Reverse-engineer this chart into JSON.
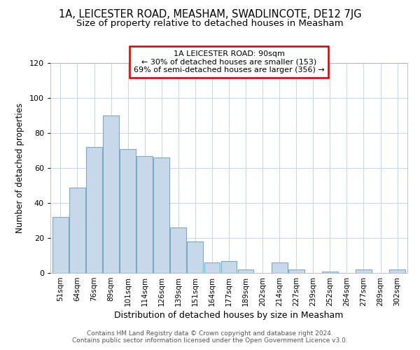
{
  "title": "1A, LEICESTER ROAD, MEASHAM, SWADLINCOTE, DE12 7JG",
  "subtitle": "Size of property relative to detached houses in Measham",
  "xlabel": "Distribution of detached houses by size in Measham",
  "ylabel": "Number of detached properties",
  "bar_labels": [
    "51sqm",
    "64sqm",
    "76sqm",
    "89sqm",
    "101sqm",
    "114sqm",
    "126sqm",
    "139sqm",
    "151sqm",
    "164sqm",
    "177sqm",
    "189sqm",
    "202sqm",
    "214sqm",
    "227sqm",
    "239sqm",
    "252sqm",
    "264sqm",
    "277sqm",
    "289sqm",
    "302sqm"
  ],
  "bar_values": [
    32,
    49,
    72,
    90,
    71,
    67,
    66,
    26,
    18,
    6,
    7,
    2,
    0,
    6,
    2,
    0,
    1,
    0,
    2,
    0,
    2
  ],
  "bar_color": "#c8d8eb",
  "bar_edge_color": "#7aaac8",
  "annotation_title": "1A LEICESTER ROAD: 90sqm",
  "annotation_line1": "← 30% of detached houses are smaller (153)",
  "annotation_line2": "69% of semi-detached houses are larger (356) →",
  "annotation_box_color": "#ffffff",
  "annotation_box_edge": "#cc0000",
  "ylim": [
    0,
    120
  ],
  "yticks": [
    0,
    20,
    40,
    60,
    80,
    100,
    120
  ],
  "footer_line1": "Contains HM Land Registry data © Crown copyright and database right 2024.",
  "footer_line2": "Contains public sector information licensed under the Open Government Licence v3.0.",
  "bg_color": "#ffffff",
  "plot_bg_color": "#ffffff",
  "grid_color": "#c8d8eb",
  "title_fontsize": 10.5,
  "subtitle_fontsize": 9.5
}
